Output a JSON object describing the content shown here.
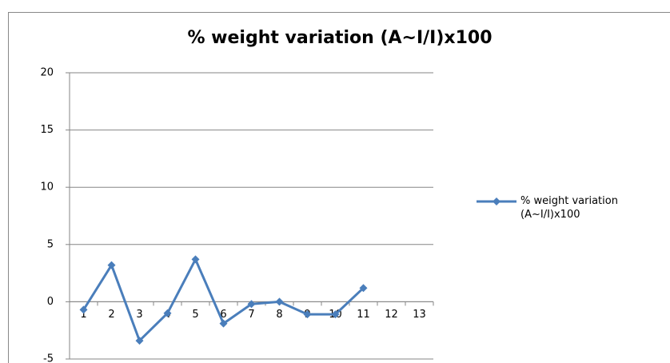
{
  "chart_data": {
    "type": "line",
    "title": "% weight variation (A~I/I)x100",
    "categories": [
      "1",
      "2",
      "3",
      "4",
      "5",
      "6",
      "7",
      "8",
      "9",
      "10",
      "11",
      "12",
      "13"
    ],
    "series": [
      {
        "name": "% weight variation (A~I/I)x100",
        "color": "#4a7ebb",
        "values": [
          -0.7,
          3.2,
          -3.4,
          -1.0,
          3.7,
          -1.9,
          -0.2,
          0.0,
          -1.1,
          -1.1,
          1.2,
          null,
          null
        ]
      }
    ],
    "ylim": [
      -5,
      20
    ],
    "yticks": [
      -5,
      0,
      5,
      10,
      15,
      20
    ],
    "grid": true,
    "legend": "right"
  }
}
